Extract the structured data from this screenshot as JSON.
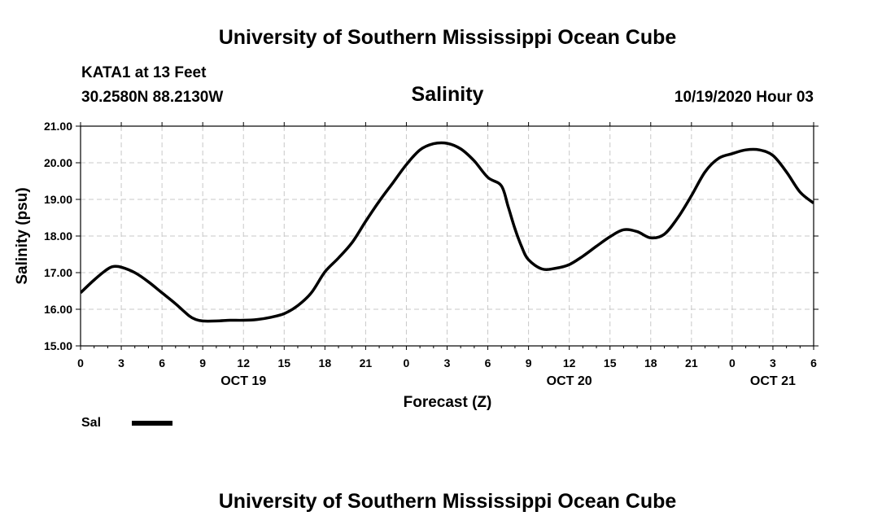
{
  "header": {
    "title": "University of Southern Mississippi Ocean Cube",
    "station": "KATA1 at 13 Feet",
    "location": "30.2580N 88.2130W",
    "variable": "Salinity",
    "run_time": "10/19/2020 Hour 03"
  },
  "footer": {
    "title": "University of Southern Mississippi Ocean Cube"
  },
  "legend": {
    "label": "Sal"
  },
  "chart_data": {
    "type": "line",
    "xlabel": "Forecast (Z)",
    "ylabel": "Salinity (psu)",
    "ylim": [
      15.0,
      21.0
    ],
    "xlim": [
      0,
      54
    ],
    "x_units": "hours since 10/19/2020 00Z",
    "yticks": [
      "15.00",
      "16.00",
      "17.00",
      "18.00",
      "19.00",
      "20.00",
      "21.00"
    ],
    "xtick_labels": [
      "0",
      "3",
      "6",
      "9",
      "12",
      "15",
      "18",
      "21",
      "0",
      "3",
      "6",
      "9",
      "12",
      "15",
      "18",
      "21",
      "0",
      "3",
      "6"
    ],
    "date_labels": [
      {
        "hour": 12,
        "label": "OCT 19"
      },
      {
        "hour": 36,
        "label": "OCT 20"
      },
      {
        "hour": 51,
        "label": "OCT 21"
      }
    ],
    "grid": true,
    "legend_position": "bottom-left",
    "series": [
      {
        "name": "Sal",
        "color": "#000000",
        "x": [
          0,
          1,
          2,
          2.5,
          3,
          4,
          5,
          6,
          7,
          8,
          8.5,
          9,
          10,
          11,
          12,
          13,
          14,
          15,
          16,
          17,
          18,
          19,
          20,
          21,
          22,
          23,
          24,
          25,
          26,
          27,
          28,
          29,
          30,
          31,
          31.5,
          32,
          32.5,
          33,
          34,
          35,
          36,
          37,
          38,
          39,
          40,
          41,
          42,
          43,
          44,
          45,
          46,
          47,
          48,
          49,
          50,
          51,
          52,
          53,
          54
        ],
        "values": [
          16.45,
          16.8,
          17.1,
          17.17,
          17.15,
          17.0,
          16.75,
          16.45,
          16.15,
          15.82,
          15.72,
          15.68,
          15.68,
          15.7,
          15.7,
          15.72,
          15.78,
          15.88,
          16.1,
          16.45,
          17.02,
          17.4,
          17.82,
          18.4,
          18.95,
          19.45,
          19.95,
          20.35,
          20.52,
          20.53,
          20.38,
          20.05,
          19.6,
          19.37,
          18.8,
          18.2,
          17.7,
          17.35,
          17.1,
          17.12,
          17.22,
          17.45,
          17.72,
          17.98,
          18.17,
          18.12,
          17.95,
          18.05,
          18.5,
          19.1,
          19.75,
          20.12,
          20.25,
          20.35,
          20.35,
          20.2,
          19.75,
          19.2,
          18.9
        ]
      }
    ]
  }
}
